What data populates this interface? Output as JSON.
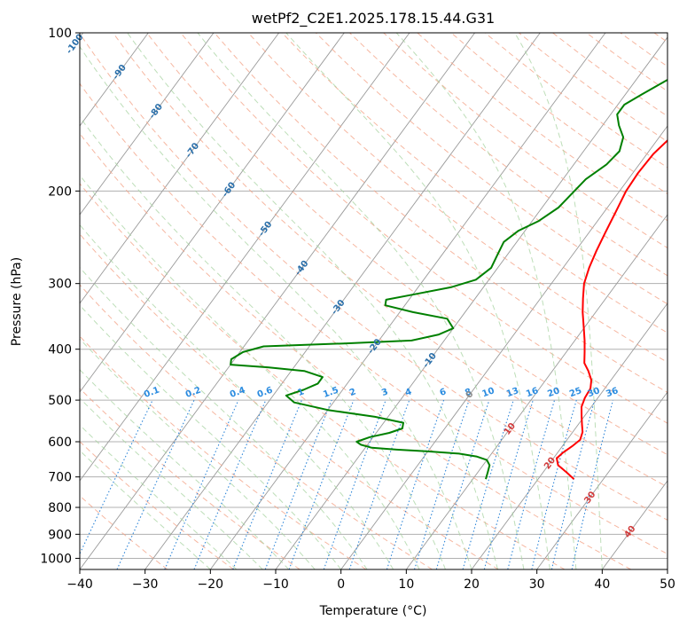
{
  "chart_data": {
    "type": "line",
    "title": "wetPf2_C2E1.2025.178.15.44.G31",
    "xlabel": "Temperature (°C)",
    "ylabel": "Pressure (hPa)",
    "xlim": [
      -40,
      50
    ],
    "ylim": [
      1050,
      100
    ],
    "y_scale": "log",
    "grid": true,
    "x_ticks": [
      -40,
      -30,
      -20,
      -10,
      0,
      10,
      20,
      30,
      40,
      50
    ],
    "y_ticks": [
      100,
      200,
      300,
      400,
      500,
      600,
      700,
      800,
      900,
      1000
    ],
    "series": [
      {
        "color": "#ff0000",
        "points": [
          [
            25.5,
            707
          ],
          [
            23.5,
            685
          ],
          [
            21.5,
            665
          ],
          [
            20.5,
            645
          ],
          [
            20.8,
            630
          ],
          [
            21.5,
            612
          ],
          [
            22.0,
            595
          ],
          [
            21.5,
            575
          ],
          [
            20.5,
            555
          ],
          [
            19.5,
            535
          ],
          [
            18.5,
            515
          ],
          [
            18.0,
            495
          ],
          [
            17.8,
            475
          ],
          [
            17.0,
            458
          ],
          [
            15.5,
            440
          ],
          [
            14.0,
            425
          ],
          [
            12.8,
            405
          ],
          [
            11.5,
            385
          ],
          [
            10.0,
            365
          ],
          [
            8.0,
            340
          ],
          [
            6.5,
            320
          ],
          [
            5.0,
            300
          ],
          [
            4.0,
            280
          ],
          [
            3.2,
            260
          ],
          [
            2.5,
            240
          ],
          [
            1.8,
            220
          ],
          [
            1.0,
            200
          ],
          [
            0.8,
            185
          ],
          [
            1.0,
            170
          ],
          [
            2.0,
            155
          ],
          [
            3.5,
            143
          ],
          [
            5.0,
            135
          ],
          [
            6.0,
            128
          ],
          [
            6.5,
            120
          ],
          [
            6.5,
            112
          ],
          [
            6.8,
            105
          ],
          [
            7.3,
            100
          ]
        ]
      },
      {
        "color": "#008000",
        "points": [
          [
            12.0,
            707
          ],
          [
            11.5,
            685
          ],
          [
            11.0,
            665
          ],
          [
            10.0,
            650
          ],
          [
            8.0,
            640
          ],
          [
            5.0,
            632
          ],
          [
            0.0,
            626
          ],
          [
            -5.0,
            621
          ],
          [
            -9.0,
            616
          ],
          [
            -11.0,
            608
          ],
          [
            -12.0,
            600
          ],
          [
            -10.5,
            588
          ],
          [
            -8.0,
            577
          ],
          [
            -6.5,
            566
          ],
          [
            -7.0,
            552
          ],
          [
            -12.0,
            538
          ],
          [
            -20.0,
            522
          ],
          [
            -26.0,
            505
          ],
          [
            -28.0,
            490
          ],
          [
            -26.0,
            478
          ],
          [
            -24.5,
            465
          ],
          [
            -24.5,
            452
          ],
          [
            -28.0,
            440
          ],
          [
            -34.0,
            433
          ],
          [
            -40.0,
            428
          ],
          [
            -40.5,
            418
          ],
          [
            -39.5,
            405
          ],
          [
            -37.0,
            395
          ],
          [
            -25.0,
            390
          ],
          [
            -15.0,
            385
          ],
          [
            -11.5,
            375
          ],
          [
            -10.0,
            365
          ],
          [
            -12.0,
            350
          ],
          [
            -18.0,
            340
          ],
          [
            -23.0,
            330
          ],
          [
            -23.5,
            322
          ],
          [
            -20.0,
            315
          ],
          [
            -15.0,
            305
          ],
          [
            -12.0,
            295
          ],
          [
            -11.0,
            280
          ],
          [
            -11.5,
            265
          ],
          [
            -12.0,
            250
          ],
          [
            -11.0,
            238
          ],
          [
            -9.0,
            228
          ],
          [
            -7.5,
            215
          ],
          [
            -7.0,
            202
          ],
          [
            -6.5,
            190
          ],
          [
            -5.0,
            178
          ],
          [
            -4.5,
            168
          ],
          [
            -5.5,
            158
          ],
          [
            -7.5,
            150
          ],
          [
            -9.0,
            143
          ],
          [
            -9.0,
            137
          ],
          [
            -7.5,
            131
          ],
          [
            -5.5,
            124
          ],
          [
            -3.5,
            117
          ],
          [
            -1.5,
            110
          ],
          [
            0.0,
            104
          ],
          [
            1.0,
            100
          ]
        ]
      }
    ],
    "isotherm_labels": [
      "-100",
      "-90",
      "-80",
      "-70",
      "-60",
      "-50",
      "-40",
      "-30",
      "-20",
      "-10",
      "0",
      "10",
      "20",
      "30",
      "40"
    ],
    "mixing_ratio_labels": [
      "0.1",
      "0.2",
      "0.4",
      "0.6",
      "1",
      "1.5",
      "2",
      "3",
      "4",
      "6",
      "8",
      "10",
      "13",
      "16",
      "20",
      "25",
      "30",
      "36"
    ]
  }
}
